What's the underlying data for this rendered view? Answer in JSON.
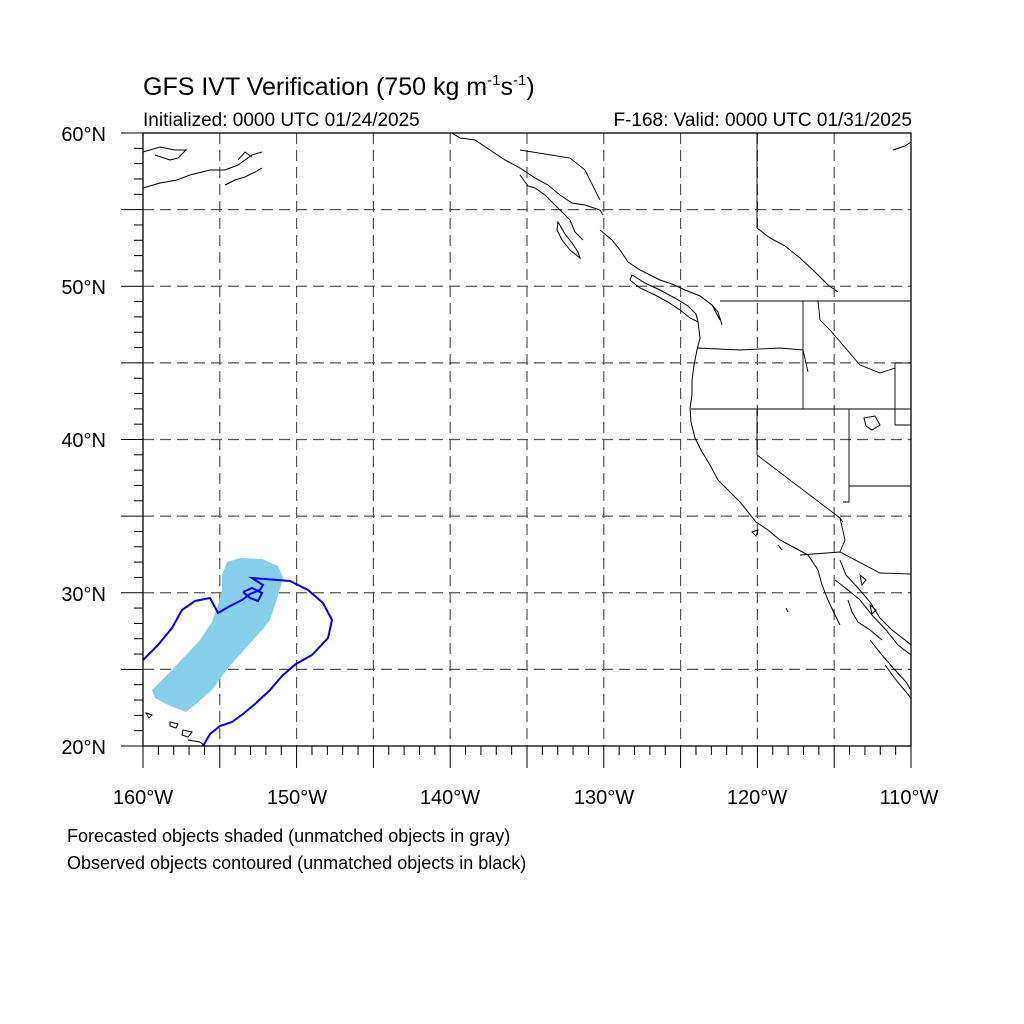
{
  "title": {
    "main": "GFS IVT Verification (750 kg m",
    "exp1": "-1",
    "mid": "s",
    "exp2": "-1",
    "end": ")"
  },
  "subtitle": {
    "initialized": "Initialized: 0000 UTC 01/24/2025",
    "valid": "F-168: Valid: 0000 UTC 01/31/2025"
  },
  "axes": {
    "lat_labels": [
      "60°N",
      "50°N",
      "40°N",
      "30°N",
      "20°N"
    ],
    "lon_labels": [
      "160°W",
      "150°W",
      "140°W",
      "130°W",
      "120°W",
      "110°W"
    ],
    "lat_range": [
      20,
      60
    ],
    "lon_range": [
      -160,
      -110
    ],
    "gridlines": "dashed, every 5 degrees"
  },
  "legend": {
    "line1": "Forecasted objects shaded (unmatched objects in gray)",
    "line2": "Observed objects contoured (unmatched objects in black)"
  },
  "colors": {
    "forecast_fill": "#87CEEB",
    "observed_contour": "#0000ee",
    "coastline": "#000000",
    "grid": "#555555"
  }
}
